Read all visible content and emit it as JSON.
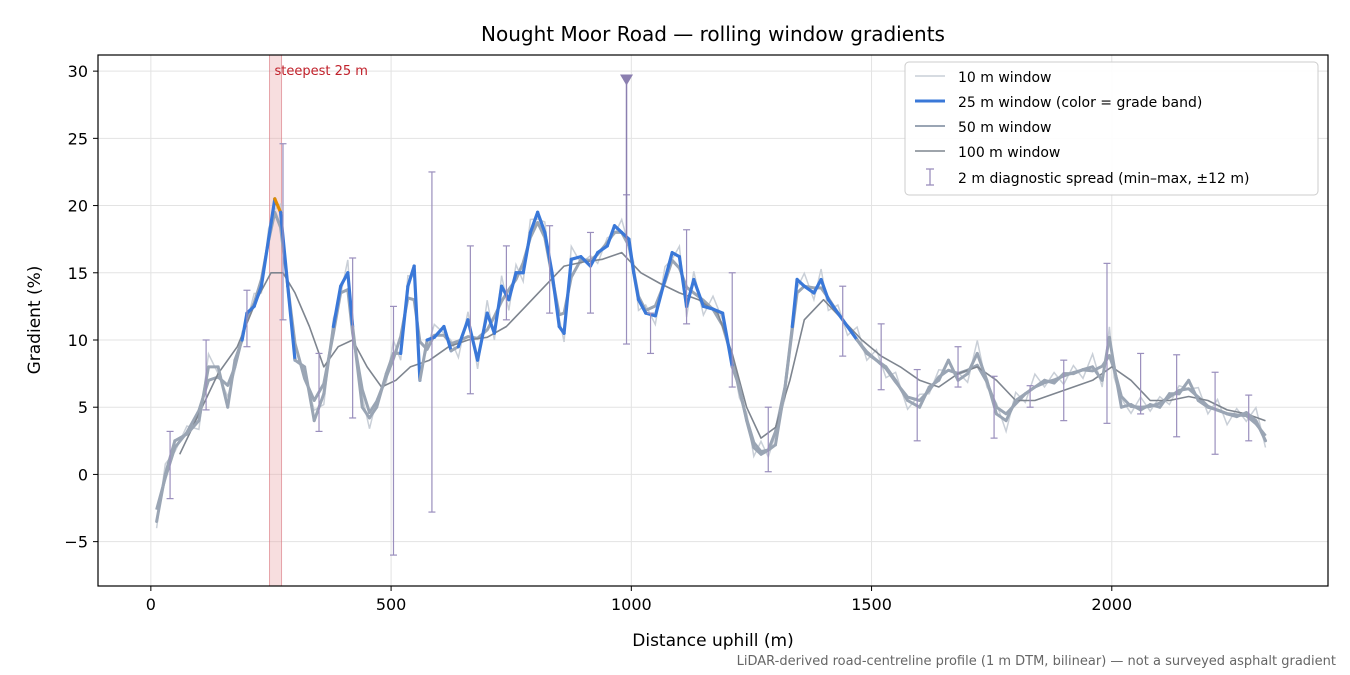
{
  "chart_data": {
    "type": "line",
    "title": "Nought Moor Road — rolling window gradients",
    "xlabel": "Distance uphill (m)",
    "ylabel": "Gradient (%)",
    "xlim": [
      -110,
      2450
    ],
    "ylim": [
      -8.3,
      31.2
    ],
    "xticks": [
      0,
      500,
      1000,
      1500,
      2000
    ],
    "yticks": [
      -5,
      0,
      5,
      10,
      15,
      20,
      25,
      30
    ],
    "xtick_labels": [
      "0",
      "500",
      "1000",
      "1500",
      "2000"
    ],
    "ytick_labels": [
      "−5",
      "0",
      "5",
      "10",
      "15",
      "20",
      "25",
      "30"
    ],
    "grid": true,
    "legend_position": "top-right",
    "footnote": "LiDAR-derived road-centreline profile (1 m DTM, bilinear) — not a surveyed asphalt gradient",
    "steepest_annotation": {
      "label": "steepest 25 m",
      "x_start": 247,
      "x_end": 272
    },
    "max_marker": {
      "x": 990,
      "y": 29.3
    },
    "grade_band_colors": {
      "low": "#9aa5b4",
      "mid": "#3a78d8",
      "high": "#e08a00"
    },
    "legend": [
      {
        "label": "10 m window",
        "color": "#c9cfd7",
        "style": "thin"
      },
      {
        "label": "25 m window (color = grade band)",
        "color": "#3a78d8",
        "style": "thick"
      },
      {
        "label": "50 m window",
        "color": "#9aa5b4",
        "style": "medium"
      },
      {
        "label": "100 m window",
        "color": "#7e858f",
        "style": "medium"
      },
      {
        "label": "2 m diagnostic spread (min–max, ±12 m)",
        "color": "#9a8fbd",
        "style": "errorbar"
      }
    ],
    "series": [
      {
        "name": "25 m window",
        "color": "#3a78d8",
        "x": [
          12,
          30,
          50,
          75,
          100,
          120,
          140,
          160,
          175,
          190,
          200,
          215,
          230,
          245,
          258,
          270,
          285,
          300,
          320,
          340,
          360,
          380,
          395,
          410,
          420,
          440,
          455,
          470,
          490,
          505,
          520,
          535,
          548,
          560,
          575,
          590,
          610,
          625,
          640,
          660,
          680,
          700,
          715,
          730,
          745,
          760,
          775,
          790,
          805,
          820,
          835,
          850,
          860,
          875,
          895,
          915,
          930,
          950,
          965,
          980,
          995,
          1005,
          1015,
          1030,
          1050,
          1070,
          1085,
          1100,
          1115,
          1130,
          1150,
          1170,
          1190,
          1210,
          1225,
          1240,
          1255,
          1270,
          1285,
          1300,
          1320,
          1335,
          1345,
          1360,
          1380,
          1395,
          1410,
          1430,
          1450,
          1470,
          1490,
          1510,
          1530,
          1550,
          1575,
          1600,
          1620,
          1640,
          1660,
          1680,
          1700,
          1720,
          1740,
          1760,
          1780,
          1800,
          1820,
          1840,
          1860,
          1880,
          1900,
          1920,
          1940,
          1960,
          1980,
          1995,
          2005,
          2020,
          2040,
          2060,
          2080,
          2100,
          2120,
          2140,
          2160,
          2180,
          2200,
          2220,
          2240,
          2260,
          2280,
          2300,
          2320
        ],
        "y": [
          -3.5,
          0,
          2.5,
          3.0,
          4.0,
          8.0,
          8.0,
          5.0,
          8.5,
          10.0,
          12.0,
          12.5,
          14.0,
          17.5,
          20.5,
          19.5,
          14.0,
          8.5,
          8.0,
          4.0,
          6.0,
          11.0,
          14.0,
          15.0,
          11.0,
          5.0,
          4.2,
          5.0,
          7.5,
          9.0,
          9.0,
          14.0,
          15.5,
          7.0,
          10.0,
          10.2,
          11.0,
          9.2,
          9.5,
          11.5,
          8.5,
          12.0,
          10.5,
          14.0,
          13.0,
          15.0,
          15.0,
          18.0,
          19.5,
          18.0,
          15.0,
          11.0,
          10.5,
          16.0,
          16.2,
          15.5,
          16.5,
          17.0,
          18.5,
          18.0,
          17.5,
          15.0,
          13.0,
          12.0,
          11.8,
          14.5,
          16.5,
          16.2,
          12.5,
          14.5,
          12.5,
          12.3,
          12.0,
          8.0,
          6.5,
          4.0,
          2.0,
          1.5,
          1.8,
          2.2,
          6.5,
          11.0,
          14.5,
          14.0,
          13.5,
          14.5,
          13.0,
          12.0,
          11.0,
          10.0,
          9.0,
          8.5,
          8.0,
          7.0,
          5.5,
          5.0,
          6.5,
          7.0,
          8.5,
          7.0,
          7.5,
          9.0,
          7.0,
          4.5,
          4.0,
          5.5,
          6.0,
          6.5,
          7.0,
          6.8,
          7.5,
          7.5,
          7.8,
          8.0,
          7.0,
          10.2,
          8.0,
          5.0,
          5.2,
          4.8,
          5.2,
          5.0,
          6.0,
          6.0,
          7.0,
          5.5,
          5.0,
          4.8,
          4.5,
          4.3,
          4.6,
          4.0,
          2.5
        ]
      },
      {
        "name": "100 m window",
        "color": "#7e858f",
        "x": [
          60,
          100,
          140,
          180,
          220,
          250,
          275,
          300,
          330,
          360,
          390,
          420,
          450,
          480,
          510,
          540,
          580,
          620,
          660,
          700,
          740,
          780,
          820,
          860,
          900,
          940,
          980,
          1020,
          1060,
          1100,
          1140,
          1180,
          1210,
          1240,
          1270,
          1300,
          1330,
          1360,
          1400,
          1440,
          1480,
          1520,
          1560,
          1600,
          1640,
          1680,
          1720,
          1760,
          1800,
          1840,
          1880,
          1920,
          1960,
          2000,
          2040,
          2080,
          2120,
          2160,
          2200,
          2240,
          2280,
          2320
        ],
        "y": [
          1.5,
          4.5,
          7.5,
          9.5,
          13.0,
          15.0,
          15.0,
          13.5,
          11.0,
          8.0,
          9.5,
          10.0,
          8.0,
          6.5,
          7.0,
          8.0,
          8.5,
          9.5,
          10.0,
          10.2,
          11.0,
          12.5,
          14.0,
          15.5,
          15.8,
          16.0,
          16.5,
          15.0,
          14.2,
          13.5,
          13.0,
          12.0,
          9.0,
          5.0,
          2.7,
          3.5,
          7.0,
          11.5,
          13.0,
          11.5,
          10.0,
          8.8,
          8.0,
          7.0,
          6.5,
          7.5,
          8.0,
          7.0,
          5.5,
          5.5,
          6.0,
          6.5,
          7.0,
          8.0,
          7.0,
          5.5,
          5.5,
          5.8,
          5.5,
          4.8,
          4.5,
          4.0
        ]
      }
    ],
    "errorbars": {
      "x": [
        40,
        115,
        200,
        275,
        350,
        420,
        505,
        585,
        665,
        740,
        830,
        915,
        990,
        1040,
        1115,
        1210,
        1285,
        1440,
        1520,
        1595,
        1680,
        1755,
        1830,
        1900,
        1990,
        2060,
        2135,
        2215,
        2285
      ],
      "low": [
        -1.8,
        4.8,
        9.5,
        11.5,
        3.2,
        4.2,
        -6.0,
        -2.8,
        6.0,
        11.5,
        12.0,
        12.0,
        9.7,
        9.0,
        11.2,
        6.5,
        0.2,
        8.8,
        6.3,
        2.5,
        6.5,
        2.7,
        5.0,
        4.0,
        3.8,
        4.5,
        2.8,
        1.5,
        2.5
      ],
      "high": [
        3.2,
        10.0,
        13.7,
        24.6,
        9.0,
        16.1,
        12.5,
        22.5,
        17.0,
        17.0,
        18.5,
        18.0,
        20.8,
        12.0,
        18.2,
        15.0,
        5.0,
        14.0,
        11.2,
        7.8,
        9.5,
        7.3,
        6.6,
        8.5,
        15.7,
        9.0,
        8.9,
        7.6,
        5.9
      ]
    }
  }
}
